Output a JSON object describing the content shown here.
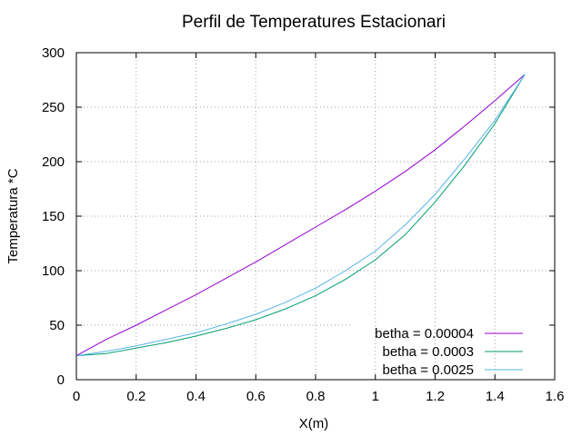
{
  "chart_data": {
    "type": "line",
    "title": "Perfil de Temperatures Estacionari",
    "xlabel": "X(m)",
    "ylabel": "Temperatura *C",
    "xlim": [
      0,
      1.6
    ],
    "ylim": [
      0,
      300
    ],
    "xticks": [
      "0",
      "0.2",
      "0.4",
      "0.6",
      "0.8",
      "1",
      "1.2",
      "1.4",
      "1.6"
    ],
    "yticks": [
      "0",
      "50",
      "100",
      "150",
      "200",
      "250",
      "300"
    ],
    "grid": true,
    "legend_position": "bottom-right",
    "series": [
      {
        "name": "betha = 0.00004",
        "color": "#9400d3",
        "x": [
          0,
          0.1,
          0.2,
          0.3,
          0.4,
          0.5,
          0.6,
          0.7,
          0.8,
          0.9,
          1.0,
          1.1,
          1.2,
          1.3,
          1.4,
          1.5
        ],
        "y": [
          22,
          37,
          50,
          64,
          78,
          93,
          108,
          124,
          140,
          156,
          173,
          191,
          211,
          233,
          256,
          280
        ]
      },
      {
        "name": "betha = 0.0003",
        "color": "#009e73",
        "x": [
          0,
          0.1,
          0.2,
          0.3,
          0.4,
          0.5,
          0.6,
          0.7,
          0.8,
          0.9,
          1.0,
          1.1,
          1.2,
          1.3,
          1.4,
          1.5
        ],
        "y": [
          22,
          24,
          29,
          34,
          40,
          47,
          55,
          65,
          77,
          92,
          110,
          133,
          163,
          197,
          235,
          280
        ]
      },
      {
        "name": "betha = 0.0025",
        "color": "#56b4e9",
        "x": [
          0,
          0.1,
          0.2,
          0.3,
          0.4,
          0.5,
          0.6,
          0.7,
          0.8,
          0.9,
          1.0,
          1.1,
          1.2,
          1.3,
          1.4,
          1.5
        ],
        "y": [
          22,
          26,
          31,
          37,
          43,
          51,
          60,
          71,
          84,
          100,
          118,
          142,
          170,
          203,
          238,
          280
        ]
      }
    ]
  }
}
